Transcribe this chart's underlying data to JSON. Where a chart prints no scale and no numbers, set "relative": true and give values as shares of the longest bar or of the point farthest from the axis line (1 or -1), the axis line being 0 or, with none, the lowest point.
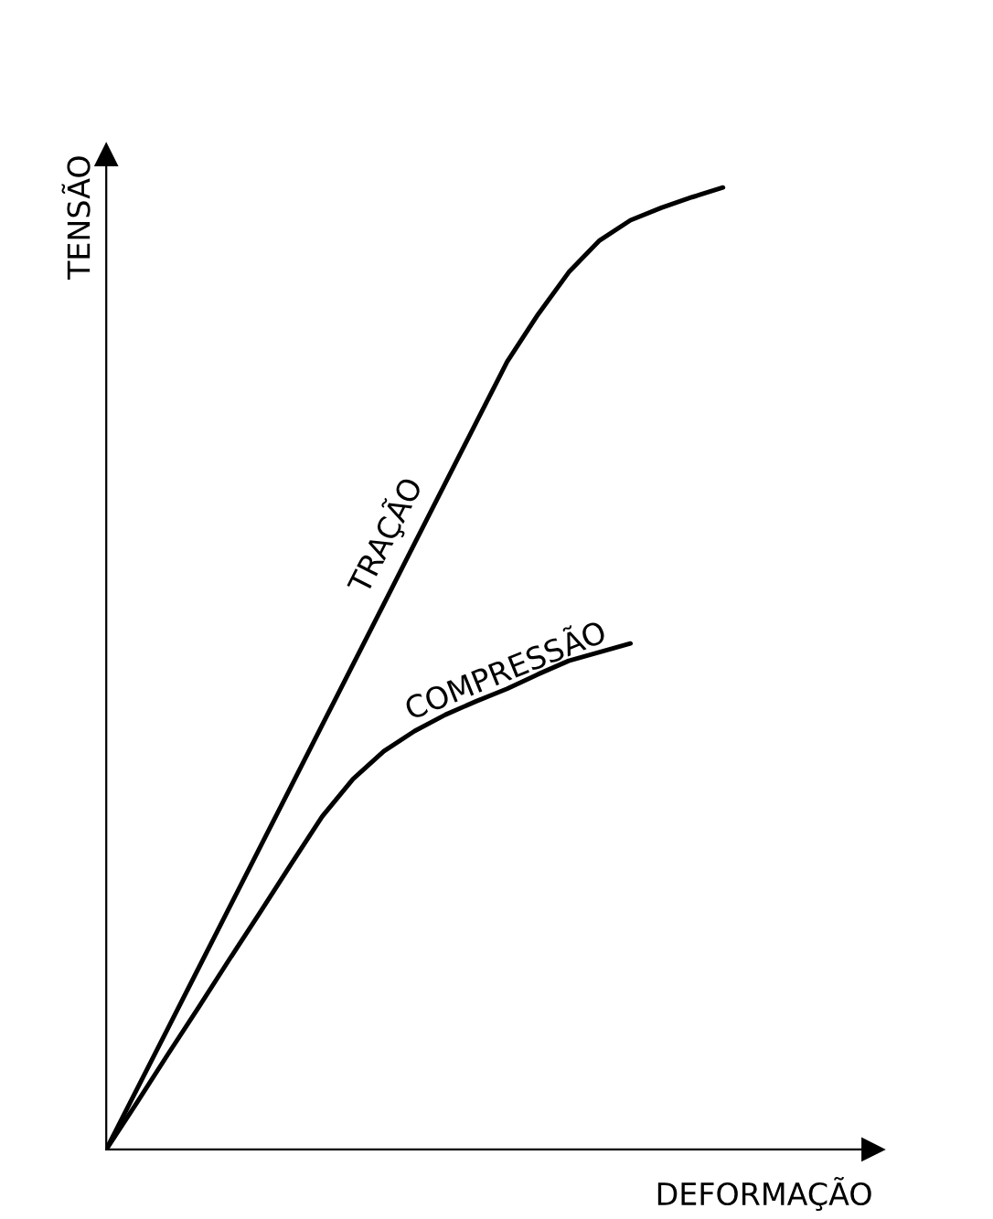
{
  "chart_data": {
    "type": "line",
    "relative": true,
    "xlabel": "DEFORMAÇÃO",
    "ylabel": "TENSÃO",
    "grid": false,
    "legend": false,
    "marker": "none",
    "line_style": "solid",
    "categories": [
      null,
      null,
      null,
      null,
      null,
      null,
      null,
      null,
      null,
      null,
      null,
      null,
      null,
      null,
      null,
      null,
      null,
      null,
      null,
      null,
      null
    ],
    "series": [
      {
        "name": "TRAÇÃO",
        "color": "#000000",
        "values": [
          0,
          0.063,
          0.126,
          0.189,
          0.252,
          0.315,
          0.378,
          0.441,
          0.504,
          0.567,
          0.63,
          0.693,
          0.756,
          0.819,
          0.868,
          0.912,
          0.945,
          0.966,
          0.979,
          0.99,
          1.0
        ]
      },
      {
        "name": "COMPRESSÃO",
        "color": "#000000",
        "values": [
          0,
          0.049,
          0.099,
          0.148,
          0.198,
          0.247,
          0.297,
          0.346,
          0.385,
          0.414,
          0.435,
          0.452,
          0.466,
          0.479,
          0.494,
          0.508,
          0.517,
          0.526,
          null,
          null,
          null
        ]
      }
    ]
  }
}
